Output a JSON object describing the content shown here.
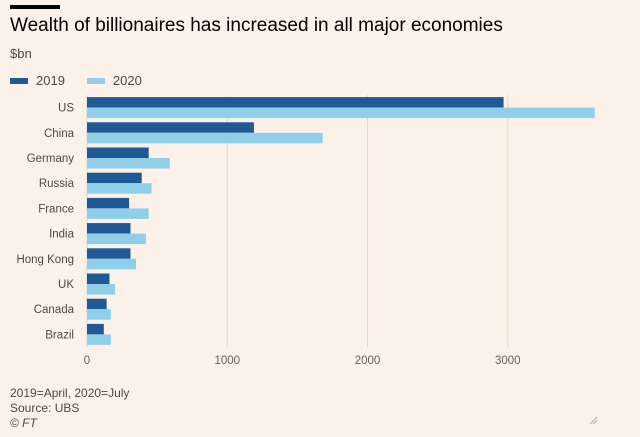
{
  "header": {
    "title": "Wealth of billionaires has increased in all major economies",
    "units": "$bn"
  },
  "colors": {
    "series_2019": "#1f5a96",
    "series_2020": "#8fd0e8",
    "grid": "#e3d7cd"
  },
  "chart_data": {
    "type": "bar",
    "orientation": "horizontal",
    "categories": [
      "US",
      "China",
      "Germany",
      "Russia",
      "France",
      "India",
      "Hong Kong",
      "UK",
      "Canada",
      "Brazil"
    ],
    "series": [
      {
        "name": "2019",
        "values": [
          2970,
          1190,
          440,
          390,
          300,
          310,
          310,
          160,
          140,
          120
        ]
      },
      {
        "name": "2020",
        "values": [
          3620,
          1680,
          590,
          460,
          440,
          420,
          350,
          200,
          170,
          170
        ]
      }
    ],
    "xlim": [
      0,
      3800
    ],
    "xticks": [
      0,
      1000,
      2000,
      3000
    ],
    "grid": true,
    "legend": "top-left"
  },
  "footer": {
    "note": "2019=April, 2020=July",
    "source": "Source: UBS",
    "credit": "© FT"
  },
  "icons": {
    "corner": "resize-handle-icon"
  }
}
